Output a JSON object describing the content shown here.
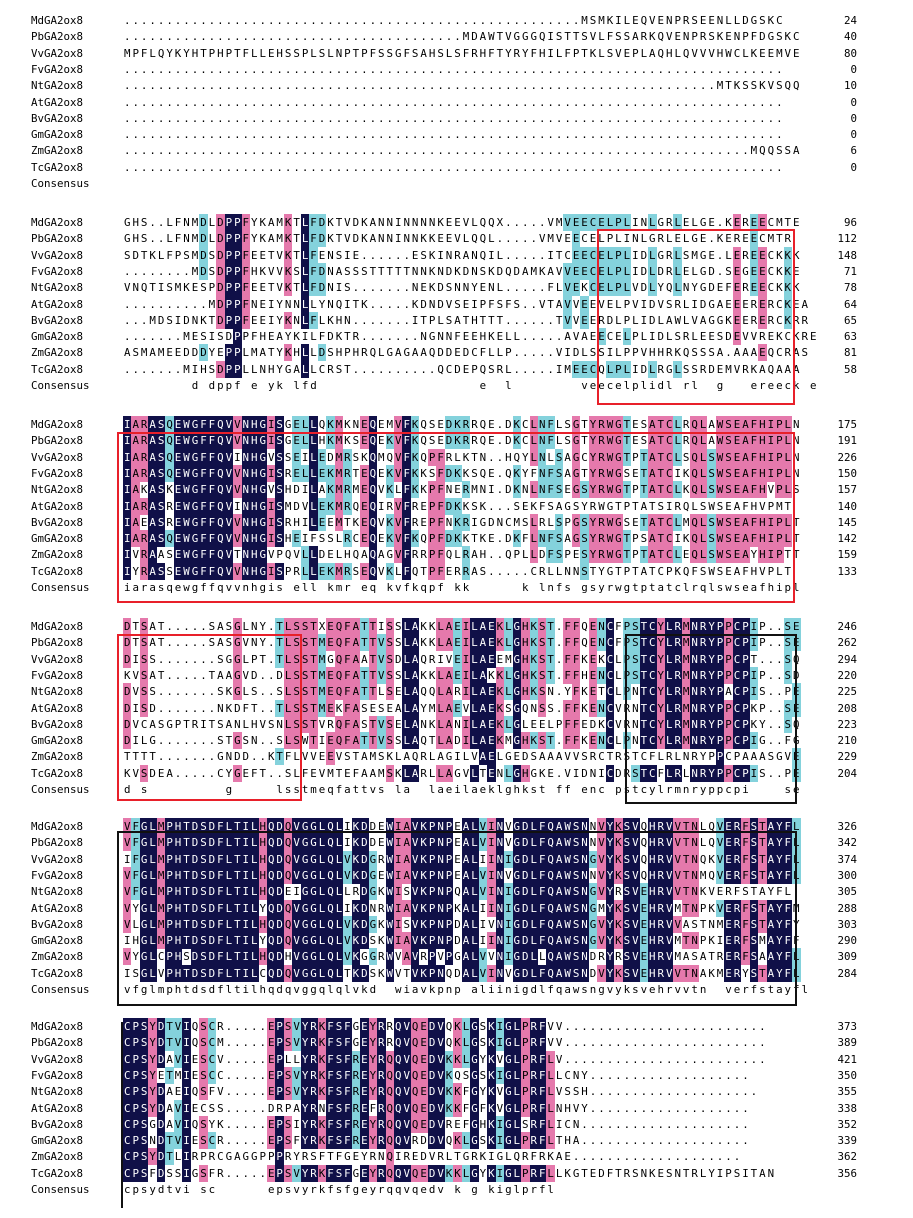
{
  "alignment": {
    "colors": {
      "dark": "#101048",
      "pink": "#e579ac",
      "cyan": "#84d2dc",
      "box_red": "#e8202a",
      "box_black": "#111111"
    },
    "blocks": [
      {
        "rows": [
          {
            "name": "MdGA2ox8",
            "seq": "......................................................MSMKILEQVENPRSEENLLDGSKC",
            "num": "24"
          },
          {
            "name": "PbGA2ox8",
            "seq": "........................................MDAWTVGGGQISTTSVLFSSARKQVENPRSKENPFDGSKC",
            "num": "40"
          },
          {
            "name": "VvGA2ox8",
            "seq": "MPFLQYKYHTPHPTFLLEHSSPLSLNPTPFSSGFSAHSLSFRHFTYRYFHILFPTKLSVEPLAQHLQVVVHWCLKEEMVE",
            "num": "80"
          },
          {
            "name": "FvGA2ox8",
            "seq": "..............................................................................",
            "num": "0"
          },
          {
            "name": "NtGA2ox8",
            "seq": "......................................................................MTKSSKVSQQ",
            "num": "10"
          },
          {
            "name": "AtGA2ox8",
            "seq": "..............................................................................",
            "num": "0"
          },
          {
            "name": "BvGA2ox8",
            "seq": "..............................................................................",
            "num": "0"
          },
          {
            "name": "GmGA2ox8",
            "seq": "..............................................................................",
            "num": "0"
          },
          {
            "name": "ZmGA2ox8",
            "seq": "..........................................................................MQQSSA",
            "num": "6"
          },
          {
            "name": "TcGA2ox8",
            "seq": "..............................................................................",
            "num": "0"
          },
          {
            "name": "Consensus",
            "seq": "",
            "num": ""
          }
        ]
      },
      {
        "rows": [
          {
            "name": "MdGA2ox8",
            "seq": "GHS..LFNMDLDPPFYKAMKTLFDKTVDKANNINNNNKEEVLQQX.....VMVEECELPLINLGRLELGE.KEREECMTE",
            "num": "96"
          },
          {
            "name": "PbGA2ox8",
            "seq": "GHS..LFNMDLDPPFYKAMKTLFDKTVDKANNINNKKEEVLQQL.....VMVEECELPLINLGRLELGE.KEREECMTR",
            "num": "112"
          },
          {
            "name": "VvGA2ox8",
            "seq": "SDTKLFPSMDSDPPFEETVKTLFENSIE......ESKINRANQIL.....ITCEECELPLIDLGRLSMGE.LEREECKKK",
            "num": "148"
          },
          {
            "name": "FvGA2ox8",
            "seq": "........MDSDPPFHKVVKSLFDNASSSTTTTTNNKNDKDNSKDQDAMKAVVEECELPLIDLDRLELGD.SEGEECKKE",
            "num": "71"
          },
          {
            "name": "NtGA2ox8",
            "seq": "VNQTISMKESPDPPFEETVKTLFDNIS.......NEKDSNNYENL.....FLVEKCELPLVDLYQLNYGDEFEREECKKK",
            "num": "78"
          },
          {
            "name": "AtGA2ox8",
            "seq": "..........MDPPFNEIYNNLLYNQITK.....KDNDVSEIPFSFS..VTAVVEEVELPVIDVSRLIDGAEEERERCKEA",
            "num": "64"
          },
          {
            "name": "BvGA2ox8",
            "seq": "...MDSIDNKTDPPFEEIYKNLFLKHN.......ITPLSATHTTT......TVVEERDLPLIDLAWLVAGGKEERERCKRR",
            "num": "65"
          },
          {
            "name": "GmGA2ox8",
            "seq": ".......MESISDPPFHEAYKILFDKTR.......NGNNFEEHKELL.....AVAEECELPLIDLSRLEESDEVVREKCKRE",
            "num": "63"
          },
          {
            "name": "ZmGA2ox8",
            "seq": "ASMAMEEDDDYEPPLMATYKHLLDSHPHRQLGAGAAQDDEDCFLLP.....VIDLSSILPPVHHRKQSSSA.AAAEQCRAS",
            "num": "81"
          },
          {
            "name": "TcGA2ox8",
            "seq": ".......MIHSDPPLLNHYGALLCRST..........QCDEPQSRL.....IMEECQLPLIDLRGLSSRDEMVRKAQAAA",
            "num": "58"
          },
          {
            "name": "Consensus",
            "seq": "        d dppf e yk lfd                   e  l        veecelplidl rl  g   ereeck e",
            "num": ""
          }
        ]
      },
      {
        "rows": [
          {
            "name": "MdGA2ox8",
            "seq": "IARASQEWGFFQVVNHGISGELLQKMKNEQEMVFKQSEDKRRQE.DKCLNFLSGTYRWGTESATCLRQLAWSEAFHIPLN",
            "num": "175"
          },
          {
            "name": "PbGA2ox8",
            "seq": "IARASQEWGFFQVVNHGISGELLHKMKSEQEKVFKQSEDKRRQE.DKCLNFLSGTYRWGTESATCLRQLAWSEAFHIPLN",
            "num": "191"
          },
          {
            "name": "VvGA2ox8",
            "seq": "IARASQEWGFFQVINHGVSSEILEDMRSKQMQVFKQPFRLKTN..HQYLNLSAGCYRWGTPTATCLSQLSWSEAFHIPLN",
            "num": "226"
          },
          {
            "name": "FvGA2ox8",
            "seq": "IARASQEWGFFQVVNHGISRELLEKMRTEQEKVFKKSFDKKSQE.QKYFNFSAGTYRWGSETATCIKQLSWSEAFHIPLN",
            "num": "150"
          },
          {
            "name": "NtGA2ox8",
            "seq": "IAKASKEWGFFQVVNHGVSHDILAKMRMEQVKLFKKPFNERMNI.DKNLNFSEGSYRWGTPTATCLKQLSWSEAFHVPLS",
            "num": "157"
          },
          {
            "name": "AtGA2ox8",
            "seq": "IARASREWGFFQVINHGISMDVLEKMRQEQIRVFREPFDKKSK...SEKFSAGSYRWGTPTATSIRQLSWSEAFHVPMT",
            "num": "140"
          },
          {
            "name": "BvGA2ox8",
            "seq": "IAEASREWGFFQVVNHGISRHILEEMTKEQVKVFREPFNKRIGDNCMSLRLSPGSYRWGSETATCLMQLSWSEAFHIPLT",
            "num": "145"
          },
          {
            "name": "GmGA2ox8",
            "seq": "IARASQEWGFFQVVNHGISHEIFSSLRCEQEKVFKQPFDKKTKE.DKFLNFSAGSYRWGTPSATCIKQLSWSEAFHIPLT",
            "num": "142"
          },
          {
            "name": "ZmGA2ox8",
            "seq": "IVRAASEWGFFQVTNHGVPQVLLDELHQAQAGVFRRPFQLRAH..QPLLDFSPESYRWGTPTATCLEQLSWSEAYHIPTT",
            "num": "159"
          },
          {
            "name": "TcGA2ox8",
            "seq": "IYRASSEWGFFQVVNHGISPRLLEKMRSEQVKLFQTPFERRAS.....CRLLNNSTYGTPTATCPKQFSWSEAFHVPLT",
            "num": "133"
          },
          {
            "name": "Consensus",
            "seq": "iarasqewgffqvvnhgis ell kmr eq kvfkqpf kk      k lnfs gsyrwgtptatclrqlswseafhipl",
            "num": ""
          }
        ]
      },
      {
        "rows": [
          {
            "name": "MdGA2ox8",
            "seq": "DTSAT.....SASGLNY.TLSSTXEQFATTISSLAKKLAEILAEKLGHKST.FFQENCFPSTCYLRMNRYPPCPIP..SE",
            "num": "246"
          },
          {
            "name": "PbGA2ox8",
            "seq": "DTSAT.....SASGVNY.TLSSTMEQFATTVSSLAKKLAEILAEKLGHKST.FFQENCFPSTCYLRMNRYPPCPIP..SE",
            "num": "262"
          },
          {
            "name": "VvGA2ox8",
            "seq": "DISS.......SGGLPT.TLSSTMGQFAATVSDLAQRIVEILAEEMGHKST.FFKEKCLPSTCYLRMNRYPPCPT...SQ",
            "num": "294"
          },
          {
            "name": "FvGA2ox8",
            "seq": "KVSAT.....TAAGVD..DLSSTMEQFATTVSSLAKKLAEILAKKLGHKST.FFHENCLPSTCYLRMNRYPPCPIP..SD",
            "num": "220"
          },
          {
            "name": "NtGA2ox8",
            "seq": "DVSS.......SKGLS..SLSSTMEQFATTLSELAQQLARILAEKLGHKSN.YFKETCLPNTCYLRMNRYPACPIS..PE",
            "num": "225"
          },
          {
            "name": "AtGA2ox8",
            "seq": "DISD.......NKDFT..TLSSTMEKFASESEALAYMLAEVLAEKSGQNSS.FFKENCVRNTCYLRMNRYPPCPKP..SE",
            "num": "208"
          },
          {
            "name": "BvGA2ox8",
            "seq": "DVCASGPTRITSANLHVSNLSSTVRQFASTVSELANKLANILAEKLGLEELPFFEDKCVRNTCYLRMNRYPPCPKY..SQ",
            "num": "223"
          },
          {
            "name": "GmGA2ox8",
            "seq": "DILG.......STGSN..SLSWTIEQFATTVSSLAQTLADILAEKMGHKST.FFKENCLPNTCYLRMNRYPPCPIG..FG",
            "num": "210"
          },
          {
            "name": "ZmGA2ox8",
            "seq": "TTTT.......GNDD..KTFLVVEEVSTAMSKLAQRLAGILVAELGEDSAAAVVSRCTRSTCFLRLNRYPPCPAAASGVE",
            "num": "229"
          },
          {
            "name": "TcGA2ox8",
            "seq": "KVSDEA.....CYGEFT..SLFEVMTEFAAMSKLARLLAGVLTENLGHGKE.VIDNICDRSTCFLRLNRYPPCPIS..PE",
            "num": "204"
          },
          {
            "name": "Consensus",
            "seq": "d s         g     lsstmeqfattvs la  laeilaeklghkst ff enc pstcylrmnryppcpi    se",
            "num": ""
          }
        ]
      },
      {
        "rows": [
          {
            "name": "MdGA2ox8",
            "seq": "VFGLMPHTDSDFLTILHQDQVGGLQLIKDDEWIAVKPNPEALVINVGDLFQAWSNNVYKSVQHRVVTNLQVERFSTAYFL",
            "num": "326"
          },
          {
            "name": "PbGA2ox8",
            "seq": "VFGLMPHTDSDFLTILHQDQVGGLQLIKDDEWIAVKPNPEALVINVGDLFQAWSNNVYKSVQHRVVTNLQVERFSTAYFL",
            "num": "342"
          },
          {
            "name": "VvGA2ox8",
            "seq": "IFGLMPHTDSDFLTILHQDQVGGLQLVKDGRWIAVKPNPEALIINIGDLFQAWSNGVYKSVQHRVVTNQKVERFSTAYFL",
            "num": "374"
          },
          {
            "name": "FvGA2ox8",
            "seq": "VFGLMPHTDSDFLTILHQDQVGGLQLVKDGEWIAVKPNPEALVINVGDLFQAWSNNVYKSVQHRVVTNMQVERFSTAYFL",
            "num": "300"
          },
          {
            "name": "NtGA2ox8",
            "seq": "VFGLMPHTDSDFLTILHQDEIGGLQLLRDGKWISVKPNPQALVINIGDLFQAWSNGVYRSVEHRVVTNKVERFSTAYFL",
            "num": "305"
          },
          {
            "name": "AtGA2ox8",
            "seq": "VYGLMPHTDSDFLTILYQDQVGGLQLIKDNRWIAVKPNPKALIINIGDLFQAWSNGMYKSVEHRVMTNPKVERFSTAYFM",
            "num": "288"
          },
          {
            "name": "BvGA2ox8",
            "seq": "VLGLMPHTDSDFLTILHQDQVGGLQLVKDGKWISVKPNPDALIVNIGDLFQAWSNGVYKSVEHRVVASTNMERFSTAYFY",
            "num": "303"
          },
          {
            "name": "GmGA2ox8",
            "seq": "IHGLMPHTDSDFLTILYQDQVGGLQLVKDSKWIAVKPNPDALIINIGDLFQAWSNGVYKSVEHRVMTNPKIERFSMAYFF",
            "num": "290"
          },
          {
            "name": "ZmGA2ox8",
            "seq": "VYGLCPHSDSDFLTILHQDHVGGLQLVKGGRWVAVRPVPGALVVNIGDLLQAWSNDRYRSVEHRVMASATRERFSAAYFL",
            "num": "309"
          },
          {
            "name": "TcGA2ox8",
            "seq": "ISGLVPHTDSDFLTILCQDQVGGLQLTKDSKWVTVKPNQDALVINVGDLFQAWSNDVYKSVEHRVVTNAKMERYSTAYFL",
            "num": "284"
          },
          {
            "name": "Consensus",
            "seq": "vfglmphtdsdfltilhqdqvggqlqlvkd  wiavkpnp aliinigdlfqawsngvyksvehrvvtn  verfstayfl",
            "num": ""
          }
        ]
      },
      {
        "rows": [
          {
            "name": "MdGA2ox8",
            "seq": "CPSYDTVIQSCR.....EPSVYRKFSFGEYRRQVQEDVQKLGSKIGLPRFVV........................",
            "num": "373"
          },
          {
            "name": "PbGA2ox8",
            "seq": "CPSYDTVIQSCM.....EPSVYRKFSFGEYRRQVQEDVQKLGSKIGLPRFVV........................",
            "num": "389"
          },
          {
            "name": "VvGA2ox8",
            "seq": "CPSYDAVIESCV.....EPLLYRKFSFREYRQQVQEDVKKLGYKVGLPRFLV........................",
            "num": "421"
          },
          {
            "name": "FvGA2ox8",
            "seq": "CPSYETMIESCC.....EPSVYRKFSFREYRQQVQEDVKQSGSKIGLPRFLLCNY...................",
            "num": "350"
          },
          {
            "name": "NtGA2ox8",
            "seq": "CPSYDAEIQSFV.....EPSVYRKFSFREYRQQVQEDVKKFGYKVGLPRFLVSSH....................",
            "num": "355"
          },
          {
            "name": "AtGA2ox8",
            "seq": "CPSYDAVIECSS.....DRPAYRNFSFREFRQQVQEDVKKFGFKVGLPRFLNHVY...................",
            "num": "338"
          },
          {
            "name": "BvGA2ox8",
            "seq": "CPSGDAVIQSYK.....EPSIYRKFSFREYRQQVQEDVREFGHKIGLSRFLICN....................",
            "num": "352"
          },
          {
            "name": "GmGA2ox8",
            "seq": "CPSNDTVIESCR.....EPSFYRKFSFREYRQQVRDDVQKLGSKIGLPRFLTHA....................",
            "num": "339"
          },
          {
            "name": "ZmGA2ox8",
            "seq": "CPSYDTLIRPRCGAGGPPPRYRSFTFGEYRNQIREDVRLTGRKIGLQRFRKAE....................",
            "num": "362"
          },
          {
            "name": "TcGA2ox8",
            "seq": "CPSFDSSIGSFR.....EPSVYRKFSFGEYRQQVQEDVKKLGYKIGLPRFLLKGTEDFTRSNKESNTRLYIPSITAN",
            "num": "356"
          },
          {
            "name": "Consensus",
            "seq": "cpsydtvi sc      epsvyrkfsfgeyrqqvqedv k g kiglprfl",
            "num": ""
          }
        ]
      }
    ]
  }
}
